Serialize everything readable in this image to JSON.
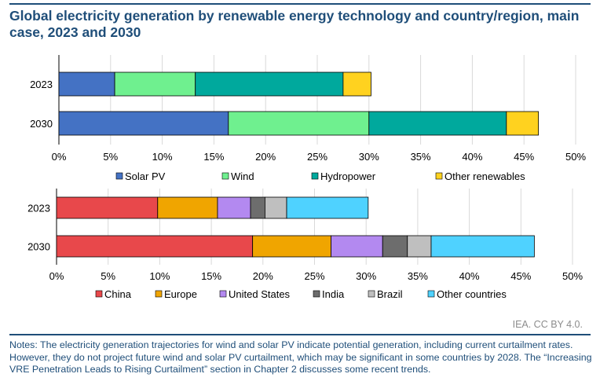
{
  "title": "Global electricity generation by renewable energy technology and country/region, main case, 2023 and 2030",
  "credit": "IEA. CC BY 4.0.",
  "notes": "Notes: The electricity generation trajectories for wind and solar PV indicate potential generation, including current curtailment rates. However, they do not project future wind and solar PV curtailment, which may be significant in some countries by 2028. The “Increasing VRE Penetration Leads to Rising Curtailment” section in Chapter 2 discusses some recent trends.",
  "chart_data": [
    {
      "type": "bar",
      "orientation": "horizontal",
      "stacked": true,
      "categories": [
        "2023",
        "2030"
      ],
      "series": [
        {
          "name": "Solar PV",
          "color": "#4472c4",
          "values": [
            5.4,
            16.4
          ]
        },
        {
          "name": "Wind",
          "color": "#6ff08f",
          "values": [
            7.8,
            13.6
          ]
        },
        {
          "name": "Hydropower",
          "color": "#00a99d",
          "values": [
            14.3,
            13.3
          ]
        },
        {
          "name": "Other renewables",
          "color": "#ffd21f",
          "values": [
            2.7,
            3.1
          ]
        }
      ],
      "xlim": [
        0,
        50
      ],
      "xticks": [
        "0%",
        "5%",
        "10%",
        "15%",
        "20%",
        "25%",
        "30%",
        "35%",
        "40%",
        "45%",
        "50%"
      ],
      "grid": true,
      "legend": "bottom"
    },
    {
      "type": "bar",
      "orientation": "horizontal",
      "stacked": true,
      "categories": [
        "2023",
        "2030"
      ],
      "series": [
        {
          "name": "China",
          "color": "#e8484b",
          "values": [
            9.8,
            19.0
          ]
        },
        {
          "name": "Europe",
          "color": "#f0a500",
          "values": [
            5.8,
            7.6
          ]
        },
        {
          "name": "United States",
          "color": "#b389f0",
          "values": [
            3.2,
            5.0
          ]
        },
        {
          "name": "India",
          "color": "#6d6d6d",
          "values": [
            1.4,
            2.4
          ]
        },
        {
          "name": "Brazil",
          "color": "#bfbfbf",
          "values": [
            2.1,
            2.3
          ]
        },
        {
          "name": "Other countries",
          "color": "#4fd2ff",
          "values": [
            7.9,
            10.0
          ]
        }
      ],
      "xlim": [
        0,
        50
      ],
      "xticks": [
        "0%",
        "5%",
        "10%",
        "15%",
        "20%",
        "25%",
        "30%",
        "35%",
        "40%",
        "45%",
        "50%"
      ],
      "grid": true,
      "legend": "bottom"
    }
  ]
}
